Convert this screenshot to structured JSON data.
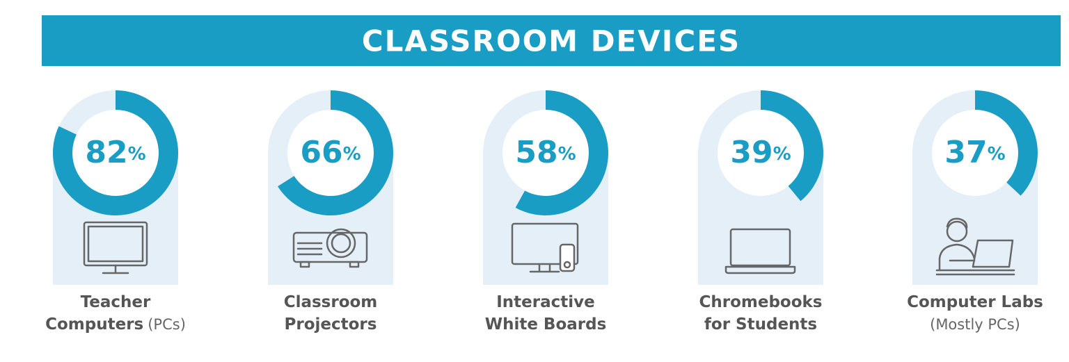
{
  "chart_data": {
    "type": "donut",
    "title": "CLASSROOM DEVICES",
    "categories": [
      [
        "Teacher",
        "Computers"
      ],
      [
        "Classroom",
        "Projectors"
      ],
      [
        "Interactive",
        "White Boards"
      ],
      [
        "Chromebooks",
        "for Students"
      ],
      [
        "Computer Labs"
      ]
    ],
    "category_notes": [
      "(PCs)",
      null,
      null,
      null,
      "(Mostly PCs)"
    ],
    "values": [
      82,
      66,
      58,
      39,
      37
    ],
    "value_labels": [
      "82%",
      "66%",
      "58%",
      "39%",
      "37%"
    ],
    "color": "#1a9dc4"
  }
}
